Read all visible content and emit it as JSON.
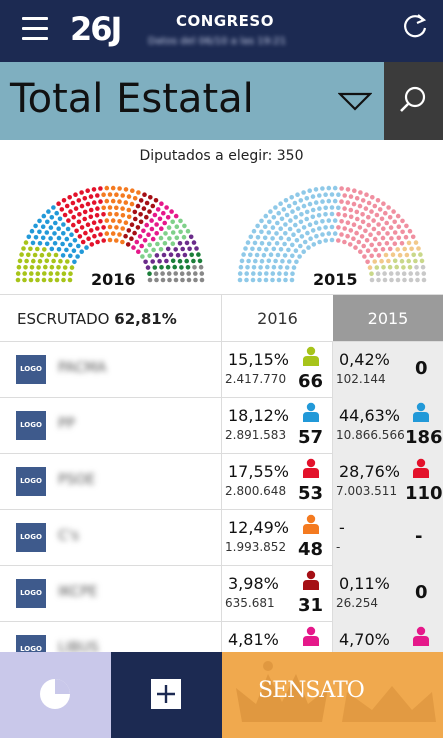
{
  "header": {
    "logo": "26J",
    "title": "CONGRESO",
    "subtitle": "Datos del 06/10 a las 19:21",
    "refresh_icon": "refresh-icon",
    "menu_icon": "hamburger-menu-icon"
  },
  "region": {
    "name": "Total Estatal",
    "dropdown_icon": "triangle-down-icon",
    "search_icon": "search-icon"
  },
  "seats_to_elect": "Diputados a elegir: 350",
  "hemicycles": [
    {
      "year": "2016"
    },
    {
      "year": "2015"
    }
  ],
  "table": {
    "counted_label": "ESCRUTADO",
    "counted_value": "62,81%",
    "col_2016": "2016",
    "col_2015": "2015"
  },
  "parties": [
    {
      "logo": "LOGO",
      "name": "PACMA",
      "pct_2016": "15,15%",
      "votes_2016": "2.417.770",
      "seats_2016": "66",
      "color_2016": "#a7c41a",
      "pct_2015": "0,42%",
      "votes_2015": "102.144",
      "seats_2015": "0",
      "color_2015": null
    },
    {
      "logo": "LOGO",
      "name": "PP",
      "pct_2016": "18,12%",
      "votes_2016": "2.891.583",
      "seats_2016": "57",
      "color_2016": "#2299d8",
      "pct_2015": "44,63%",
      "votes_2015": "10.866.566",
      "seats_2015": "186",
      "color_2015": "#2299d8"
    },
    {
      "logo": "LOGO",
      "name": "PSOE",
      "pct_2016": "17,55%",
      "votes_2016": "2.800.648",
      "seats_2016": "53",
      "color_2016": "#e3122b",
      "pct_2015": "28,76%",
      "votes_2015": "7.003.511",
      "seats_2015": "110",
      "color_2015": "#e3122b"
    },
    {
      "logo": "LOGO",
      "name": "C's",
      "pct_2016": "12,49%",
      "votes_2016": "1.993.852",
      "seats_2016": "48",
      "color_2016": "#f47a20",
      "pct_2015": "-",
      "votes_2015": "-",
      "seats_2015": "-",
      "color_2015": null
    },
    {
      "logo": "LOGO",
      "name": "IKCPE",
      "pct_2016": "3,98%",
      "votes_2016": "635.681",
      "seats_2016": "31",
      "color_2016": "#a50f15",
      "pct_2015": "0,11%",
      "votes_2015": "26.254",
      "seats_2015": "0",
      "color_2015": null
    },
    {
      "logo": "LOGO",
      "name": "LIBUS",
      "pct_2016": "4,81%",
      "votes_2016": "",
      "seats_2016": "",
      "color_2016": "#e5198a",
      "pct_2015": "4,70%",
      "votes_2015": "",
      "seats_2015": "",
      "color_2015": "#e5198a"
    }
  ],
  "bottom": {
    "pie_icon": "pie-chart-icon",
    "plus_icon": "plus-icon",
    "sponsor": "SENSATO"
  },
  "colors": {
    "navy": "#1c2a52",
    "region_bg": "#7fafc0",
    "sponsor_bg": "#f0a94e",
    "pie_bg": "#c9c8ea"
  }
}
